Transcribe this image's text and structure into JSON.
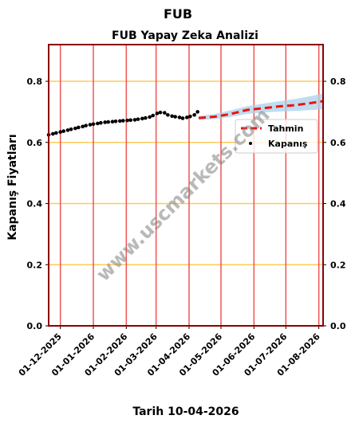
{
  "chart_data": {
    "type": "line",
    "suptitle": "FUB",
    "title": "FUB Yapay Zeka Analizi",
    "xlabel": "Tarih 10-04-2026",
    "ylabel": "Kapanış Fiyatları",
    "ylim": [
      0.0,
      0.92
    ],
    "xlim": [
      "2025-11-20",
      "2026-08-05"
    ],
    "yticks": [
      0.0,
      0.2,
      0.4,
      0.6,
      0.8
    ],
    "ytick_labels": [
      "0.0",
      "0.2",
      "0.4",
      "0.6",
      "0.8"
    ],
    "xticks": [
      "2025-12-01",
      "2026-01-01",
      "2026-02-01",
      "2026-03-01",
      "2026-04-01",
      "2026-05-01",
      "2026-06-01",
      "2026-07-01",
      "2026-08-01"
    ],
    "xtick_labels": [
      "01-12-2025",
      "01-01-2026",
      "01-02-2026",
      "01-03-2026",
      "01-04-2026",
      "01-05-2026",
      "01-06-2026",
      "01-07-2026",
      "01-08-2026"
    ],
    "horizontal_grid": "orange",
    "vertical_grid": "red",
    "legend_position": "right",
    "watermark": "www.uscmarkets.com",
    "colors": {
      "grid_h": "#ffcc55",
      "grid_v": "#ee5555",
      "frame": "#8b0000",
      "forecast": "#ee1111",
      "band": "#a9d1e8",
      "points": "#000000"
    },
    "series": [
      {
        "name": "Kapanış",
        "style": "points",
        "x": [
          "2025-11-20",
          "2025-11-24",
          "2025-11-27",
          "2025-12-01",
          "2025-12-04",
          "2025-12-08",
          "2025-12-11",
          "2025-12-15",
          "2025-12-18",
          "2025-12-22",
          "2025-12-25",
          "2025-12-29",
          "2026-01-01",
          "2026-01-05",
          "2026-01-08",
          "2026-01-12",
          "2026-01-15",
          "2026-01-19",
          "2026-01-22",
          "2026-01-26",
          "2026-01-29",
          "2026-02-02",
          "2026-02-05",
          "2026-02-09",
          "2026-02-12",
          "2026-02-16",
          "2026-02-19",
          "2026-02-23",
          "2026-02-26",
          "2026-03-02",
          "2026-03-05",
          "2026-03-09",
          "2026-03-12",
          "2026-03-16",
          "2026-03-19",
          "2026-03-23",
          "2026-03-26",
          "2026-03-30",
          "2026-04-02",
          "2026-04-06",
          "2026-04-09"
        ],
        "y": [
          0.625,
          0.628,
          0.631,
          0.634,
          0.637,
          0.64,
          0.643,
          0.646,
          0.649,
          0.652,
          0.655,
          0.658,
          0.66,
          0.662,
          0.664,
          0.666,
          0.667,
          0.668,
          0.669,
          0.67,
          0.671,
          0.672,
          0.673,
          0.674,
          0.676,
          0.678,
          0.68,
          0.683,
          0.688,
          0.695,
          0.698,
          0.697,
          0.69,
          0.686,
          0.684,
          0.682,
          0.679,
          0.682,
          0.685,
          0.69,
          0.7
        ]
      },
      {
        "name": "Tahmin",
        "style": "dashed",
        "x": [
          "2026-04-10",
          "2026-04-25",
          "2026-05-10",
          "2026-05-25",
          "2026-06-10",
          "2026-06-25",
          "2026-07-10",
          "2026-07-25",
          "2026-08-05"
        ],
        "y": [
          0.68,
          0.684,
          0.693,
          0.706,
          0.712,
          0.718,
          0.722,
          0.729,
          0.735
        ],
        "band_upper": [
          0.686,
          0.693,
          0.705,
          0.718,
          0.727,
          0.735,
          0.742,
          0.752,
          0.76
        ],
        "band_lower": [
          0.674,
          0.676,
          0.683,
          0.693,
          0.698,
          0.701,
          0.703,
          0.706,
          0.708
        ]
      }
    ]
  }
}
